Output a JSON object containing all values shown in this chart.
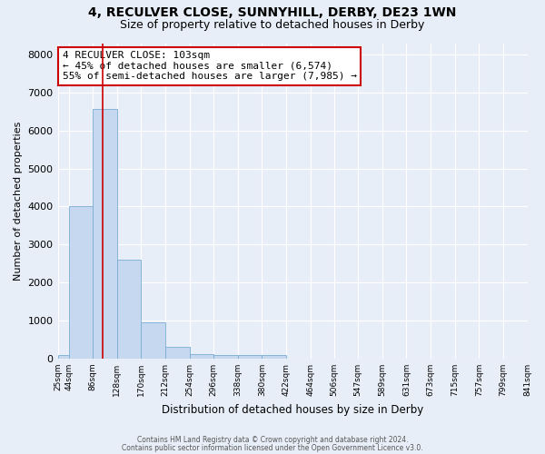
{
  "title1": "4, RECULVER CLOSE, SUNNYHILL, DERBY, DE23 1WN",
  "title2": "Size of property relative to detached houses in Derby",
  "xlabel": "Distribution of detached houses by size in Derby",
  "ylabel": "Number of detached properties",
  "bin_edges": [
    25,
    44,
    86,
    128,
    170,
    212,
    254,
    296,
    338,
    380,
    422,
    464,
    506,
    547,
    589,
    631,
    673,
    715,
    757,
    799,
    841
  ],
  "bar_heights": [
    100,
    4000,
    6574,
    2600,
    960,
    310,
    120,
    100,
    100,
    100,
    0,
    0,
    0,
    0,
    0,
    0,
    0,
    0,
    0,
    0
  ],
  "bar_color": "#c5d8f0",
  "bar_edge_color": "#7aadd4",
  "property_size": 103,
  "red_line_color": "#cc0000",
  "annotation_line1": "4 RECULVER CLOSE: 103sqm",
  "annotation_line2": "← 45% of detached houses are smaller (6,574)",
  "annotation_line3": "55% of semi-detached houses are larger (7,985) →",
  "annotation_box_color": "#ffffff",
  "annotation_box_edge_color": "#cc0000",
  "ylim": [
    0,
    8300
  ],
  "background_color": "#e8eef8",
  "grid_color": "#ffffff",
  "footnote1": "Contains HM Land Registry data © Crown copyright and database right 2024.",
  "footnote2": "Contains public sector information licensed under the Open Government Licence v3.0.",
  "title1_fontsize": 10,
  "title2_fontsize": 9,
  "tick_labels": [
    "25sqm",
    "44sqm",
    "86sqm",
    "128sqm",
    "170sqm",
    "212sqm",
    "254sqm",
    "296sqm",
    "338sqm",
    "380sqm",
    "422sqm",
    "464sqm",
    "506sqm",
    "547sqm",
    "589sqm",
    "631sqm",
    "673sqm",
    "715sqm",
    "757sqm",
    "799sqm",
    "841sqm"
  ],
  "yticks": [
    0,
    1000,
    2000,
    3000,
    4000,
    5000,
    6000,
    7000,
    8000
  ]
}
